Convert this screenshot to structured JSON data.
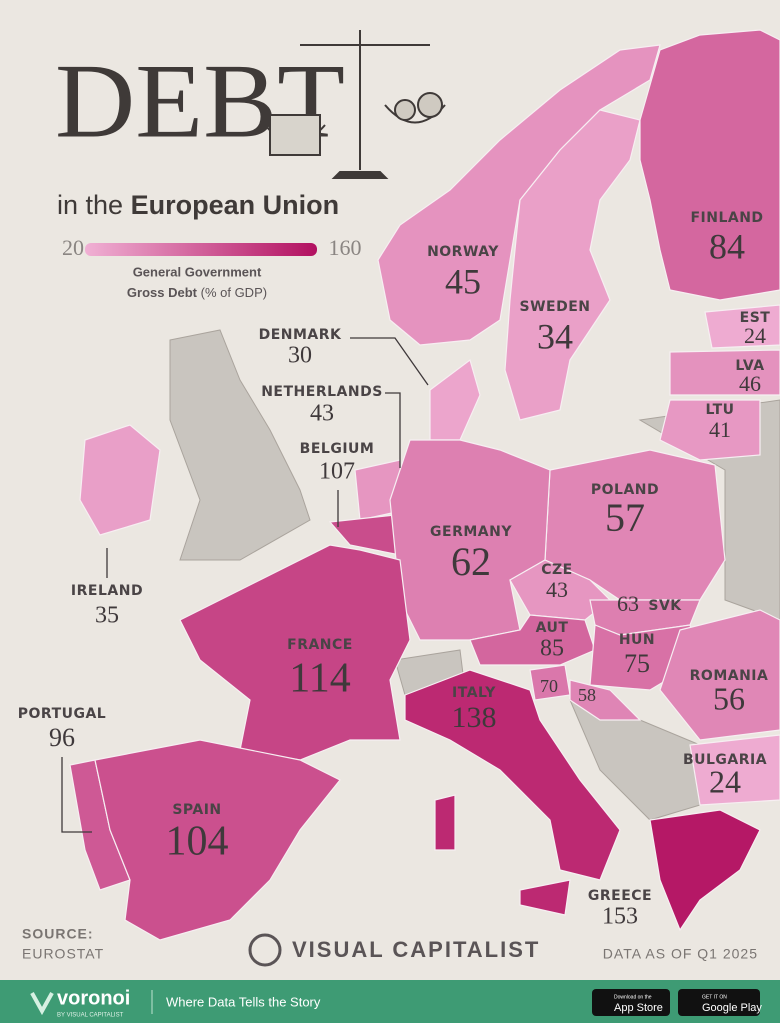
{
  "header": {
    "title": "DEBT",
    "subtitle_plain": "in the",
    "subtitle_bold": "European Union"
  },
  "legend": {
    "min": 20,
    "max": 160,
    "label_line1": "General Government",
    "label_line2_bold": "Gross Debt",
    "label_line2_unit": "(% of GDP)"
  },
  "countries": [
    {
      "name": "NORWAY",
      "value": 45
    },
    {
      "name": "SWEDEN",
      "value": 34
    },
    {
      "name": "FINLAND",
      "value": 84
    },
    {
      "name": "EST",
      "value": 24
    },
    {
      "name": "LVA",
      "value": 46
    },
    {
      "name": "LTU",
      "value": 41
    },
    {
      "name": "DENMARK",
      "value": 30
    },
    {
      "name": "NETHERLANDS",
      "value": 43
    },
    {
      "name": "BELGIUM",
      "value": 107
    },
    {
      "name": "IRELAND",
      "value": 35
    },
    {
      "name": "POLAND",
      "value": 57
    },
    {
      "name": "GERMANY",
      "value": 62
    },
    {
      "name": "CZE",
      "value": 43
    },
    {
      "name": "SVK",
      "value": 63
    },
    {
      "name": "AUT",
      "value": 85
    },
    {
      "name": "HUN",
      "value": 75
    },
    {
      "name": "FRANCE",
      "value": 114
    },
    {
      "name": "ROMANIA",
      "value": 56
    },
    {
      "name": "PORTUGAL",
      "value": 96
    },
    {
      "name": "ITALY",
      "value": 138
    },
    {
      "value": 70
    },
    {
      "value": 58
    },
    {
      "name": "BULGARIA",
      "value": 24
    },
    {
      "name": "SPAIN",
      "value": 104
    },
    {
      "name": "GREECE",
      "value": 153
    }
  ],
  "footer": {
    "source_label": "SOURCE:",
    "source": "EUROSTAT",
    "brand": "VISUAL CAPITALIST",
    "data_date": "DATA AS OF Q1 2025",
    "voronoi": "voronoi",
    "voronoi_sub": "BY VISUAL CAPITALIST",
    "tagline": "Where Data Tells the Story",
    "appstore_small": "Download on the",
    "appstore": "App Store",
    "googleplay_small": "GET IT ON",
    "googleplay": "Google Play"
  }
}
